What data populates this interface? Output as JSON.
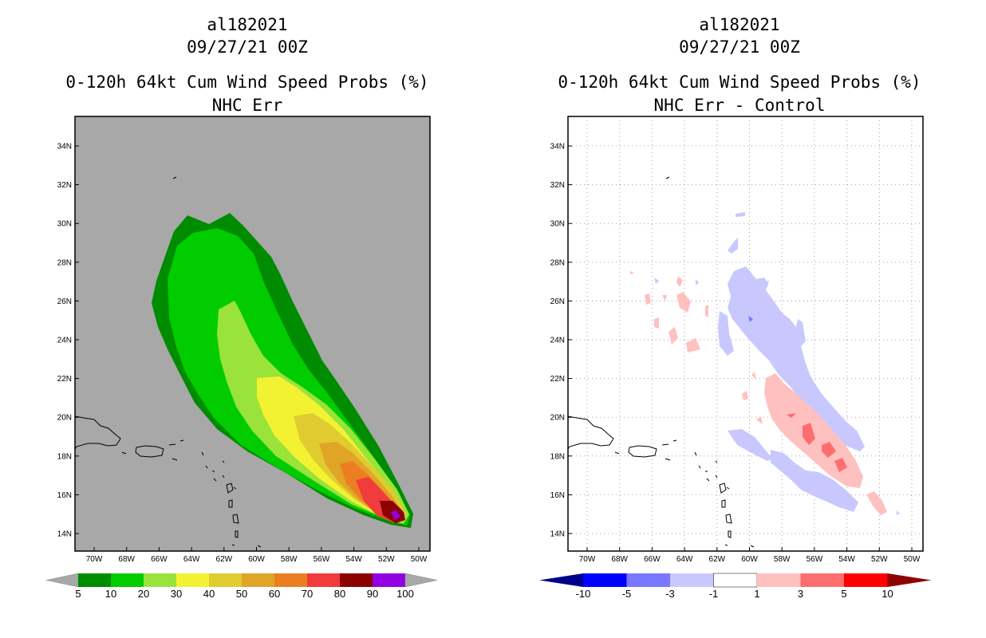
{
  "left_panel": {
    "storm_id": "al182021",
    "datetime": "09/27/21 00Z",
    "title": "0-120h 64kt Cum Wind Speed Probs (%)",
    "subtitle": "NHC Err"
  },
  "right_panel": {
    "storm_id": "al182021",
    "datetime": "09/27/21 00Z",
    "title": "0-120h 64kt Cum Wind Speed Probs (%)",
    "subtitle": "NHC Err - Control"
  },
  "lat_labels": [
    "34N",
    "32N",
    "30N",
    "28N",
    "26N",
    "24N",
    "22N",
    "20N",
    "18N",
    "16N",
    "14N"
  ],
  "lon_labels": [
    "70W",
    "68W",
    "66W",
    "64W",
    "62W",
    "60W",
    "58W",
    "56W",
    "54W",
    "52W",
    "50W"
  ],
  "left_colorbar": {
    "labels": [
      "5",
      "10",
      "20",
      "30",
      "40",
      "50",
      "60",
      "70",
      "80",
      "90",
      "100"
    ],
    "colors": [
      "#008c00",
      "#00cc00",
      "#99e33b",
      "#f2f232",
      "#e0cc30",
      "#e0a427",
      "#ec7e22",
      "#f03c3c",
      "#8c0000",
      "#9100e0"
    ],
    "end_color": "#a8a8a8"
  },
  "right_colorbar": {
    "labels": [
      "-10",
      "-5",
      "-3",
      "-1",
      "1",
      "3",
      "5",
      "10"
    ],
    "colors": [
      "#00008a",
      "#0000ff",
      "#7777ff",
      "#c8c8ff",
      "#ffffff",
      "#ffc0c0",
      "#ff6e6e",
      "#ff0000",
      "#8c0000"
    ]
  },
  "chart_data": [
    {
      "type": "map",
      "title": "0-120h 64kt Cum Wind Speed Probs (%)",
      "subtitle": "NHC Err",
      "lon_range": [
        -71,
        -49
      ],
      "lat_range": [
        13,
        35.5
      ],
      "storm_track_center_start": [
        -50.7,
        14.5
      ],
      "probability_levels": [
        5,
        10,
        20,
        30,
        40,
        50,
        60,
        70,
        80,
        90,
        100
      ]
    },
    {
      "type": "map",
      "title": "0-120h 64kt Cum Wind Speed Probs (%)",
      "subtitle": "NHC Err - Control",
      "lon_range": [
        -71,
        -49
      ],
      "lat_range": [
        13,
        35.5
      ],
      "difference_levels": [
        -10,
        -5,
        -3,
        -1,
        1,
        3,
        5,
        10
      ],
      "grid": true
    }
  ]
}
